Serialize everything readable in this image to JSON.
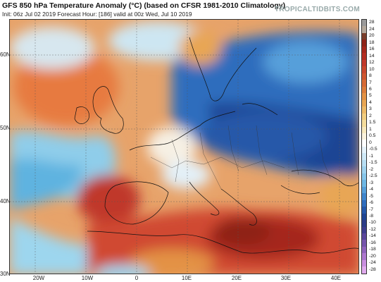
{
  "title": "GFS 850 hPa Temperature Anomaly (°C) (based on CFSR 1981-2010 Climatology)",
  "subtitle": "Init: 06z Jul 02 2019   Forecast Hour: [186]   valid at 00z Wed, Jul 10 2019",
  "site": "TROPICALTIDBITS.COM",
  "latitude_labels": [
    "60N",
    "50N",
    "40N",
    "30N"
  ],
  "longitude_labels": [
    "20W",
    "10W",
    "0",
    "10E",
    "20E",
    "30E",
    "40E"
  ],
  "colorbar": {
    "labels": [
      "28",
      "24",
      "20",
      "18",
      "16",
      "14",
      "12",
      "10",
      "8",
      "7",
      "6",
      "5",
      "4",
      "3",
      "2",
      "1.5",
      "1",
      "0.5",
      "0",
      "-0.5",
      "-1",
      "-1.5",
      "-2",
      "-2.5",
      "-3",
      "-4",
      "-5",
      "-6",
      "-7",
      "-8",
      "-10",
      "-12",
      "-14",
      "-16",
      "-18",
      "-20",
      "-24",
      "-28"
    ],
    "colors": [
      "#9a9a9a",
      "#b3a79a",
      "#7a3d2a",
      "#8e2418",
      "#a5281c",
      "#b42e22",
      "#c0392b",
      "#c8482e",
      "#cf5731",
      "#d66a35",
      "#dc7d3b",
      "#e39245",
      "#e8a654",
      "#edba68",
      "#f1cd80",
      "#f5dd9c",
      "#f8e9bd",
      "#fbf3dd",
      "#ffffff",
      "#e6f3fb",
      "#cfe9f7",
      "#b7def3",
      "#9fd3ef",
      "#87c6ea",
      "#6eb7e4",
      "#569fda",
      "#3f86cd",
      "#2f6dbd",
      "#2558a9",
      "#1f4594",
      "#2c3c87",
      "#3f3d8d",
      "#5a469b",
      "#7554ab",
      "#9063bc",
      "#ad78cf",
      "#c98fe0",
      "#e0aaee"
    ]
  }
}
